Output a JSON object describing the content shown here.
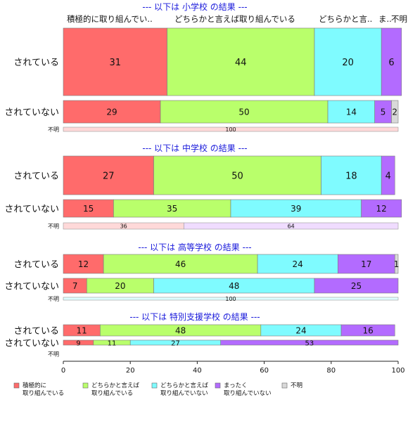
{
  "chart_data": {
    "type": "bar",
    "orientation": "horizontal",
    "stacked": true,
    "xlim": [
      0,
      100
    ],
    "xticks": [
      0,
      20,
      40,
      60,
      80,
      100
    ],
    "header_labels": [
      "積極的に取り組んでい..",
      "どちらかと言えば取り組んでいる",
      "どちらかと言..",
      "ま..",
      "不明"
    ],
    "legend": [
      {
        "name": "積極的に\n取り組んでいる",
        "color": "#ff6b6b"
      },
      {
        "name": "どちらかと言えば\n取り組んでいる",
        "color": "#b9ff6b"
      },
      {
        "name": "どちらかと言えば\n取り組んでいない",
        "color": "#7ffbff"
      },
      {
        "name": "まったく\n取り組んでいない",
        "color": "#b36bff"
      },
      {
        "name": "不明",
        "color": "#d9d9d9"
      }
    ],
    "panels": [
      {
        "title": "--- 以下は 小学校 の結果 ---",
        "rows": [
          {
            "label": "されている",
            "values": [
              31,
              44,
              20,
              6,
              0
            ],
            "shown": [
              "31",
              "44",
              "20",
              "6",
              ""
            ]
          },
          {
            "label": "されていない",
            "values": [
              29,
              50,
              14,
              5,
              2
            ],
            "shown": [
              "29",
              "50",
              "14",
              "5",
              "2"
            ]
          },
          {
            "label": "不明",
            "values": [
              100,
              0,
              0,
              0,
              0
            ],
            "shown": [
              "100",
              "",
              "",
              "",
              ""
            ]
          }
        ]
      },
      {
        "title": "--- 以下は 中学校 の結果 ---",
        "rows": [
          {
            "label": "されている",
            "values": [
              27,
              50,
              18,
              4,
              0
            ],
            "shown": [
              "27",
              "50",
              "18",
              "4",
              ""
            ]
          },
          {
            "label": "されていない",
            "values": [
              15,
              35,
              39,
              12,
              0
            ],
            "shown": [
              "15",
              "35",
              "39",
              "12",
              ""
            ]
          },
          {
            "label": "不明",
            "values": [
              36,
              0,
              0,
              64,
              0
            ],
            "shown": [
              "36",
              "",
              "",
              "64",
              ""
            ]
          }
        ]
      },
      {
        "title": "--- 以下は 高等学校 の結果 ---",
        "rows": [
          {
            "label": "されている",
            "values": [
              12,
              46,
              24,
              17,
              1
            ],
            "shown": [
              "12",
              "46",
              "24",
              "17",
              "1"
            ]
          },
          {
            "label": "されていない",
            "values": [
              7,
              20,
              48,
              25,
              0
            ],
            "shown": [
              "7",
              "20",
              "48",
              "25",
              ""
            ]
          },
          {
            "label": "不明",
            "values": [
              0,
              0,
              100,
              0,
              0
            ],
            "shown": [
              "",
              "",
              "100",
              "",
              ""
            ]
          }
        ]
      },
      {
        "title": "--- 以下は 特別支援学校 の結果 ---",
        "rows": [
          {
            "label": "されている",
            "values": [
              11,
              48,
              24,
              16,
              0
            ],
            "shown": [
              "11",
              "48",
              "24",
              "16",
              ""
            ]
          },
          {
            "label": "されていない",
            "values": [
              9,
              11,
              27,
              53,
              0
            ],
            "shown": [
              "9",
              "11",
              "27",
              "53",
              ""
            ]
          },
          {
            "label": "不明",
            "values": [
              0,
              0,
              0,
              0,
              0
            ],
            "shown": [
              "",
              "",
              "",
              "",
              ""
            ]
          }
        ]
      }
    ]
  }
}
